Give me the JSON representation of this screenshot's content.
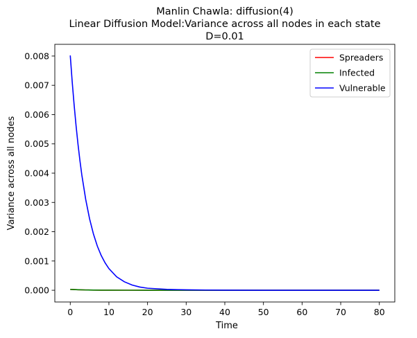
{
  "chart_data": {
    "type": "line",
    "title_lines": [
      "Manlin Chawla: diffusion(4)",
      "Linear Diffusion Model:Variance across all nodes in each state",
      "D=0.01"
    ],
    "xlabel": "Time",
    "ylabel": "Variance across all nodes",
    "xlim": [
      -4,
      84
    ],
    "ylim": [
      -0.0004,
      0.0084
    ],
    "xticks": [
      0,
      10,
      20,
      30,
      40,
      50,
      60,
      70,
      80
    ],
    "yticks": [
      0.0,
      0.001,
      0.002,
      0.003,
      0.004,
      0.005,
      0.006,
      0.007,
      0.008
    ],
    "ytick_labels": [
      "0.000",
      "0.001",
      "0.002",
      "0.003",
      "0.004",
      "0.005",
      "0.006",
      "0.007",
      "0.008"
    ],
    "grid": false,
    "legend_position": "top-right",
    "series": [
      {
        "name": "Spreaders",
        "color": "#ff0000",
        "x": [
          0,
          2,
          4,
          6,
          8,
          10,
          15,
          20,
          30,
          40,
          60,
          80
        ],
        "y": [
          3e-05,
          1.8e-05,
          1.1e-05,
          7e-06,
          4e-06,
          3e-06,
          2e-06,
          1e-06,
          5e-07,
          3e-07,
          1e-07,
          0.0
        ]
      },
      {
        "name": "Infected",
        "color": "#008000",
        "x": [
          0,
          2,
          4,
          6,
          8,
          10,
          15,
          20,
          30,
          40,
          60,
          80
        ],
        "y": [
          3e-05,
          1.8e-05,
          1.1e-05,
          7e-06,
          4e-06,
          3e-06,
          2e-06,
          1e-06,
          5e-07,
          3e-07,
          1e-07,
          0.0
        ]
      },
      {
        "name": "Vulnerable",
        "color": "#0000ff",
        "x": [
          0,
          0.5,
          1,
          1.5,
          2,
          2.5,
          3,
          4,
          5,
          6,
          7,
          8,
          9,
          10,
          12,
          14,
          16,
          18,
          20,
          25,
          30,
          35,
          40,
          50,
          60,
          70,
          80
        ],
        "y": [
          0.00802,
          0.00712,
          0.00633,
          0.00562,
          0.00499,
          0.00443,
          0.00393,
          0.0031,
          0.00244,
          0.00192,
          0.00151,
          0.00119,
          0.00094,
          0.00074,
          0.00046,
          0.00029,
          0.00018,
          0.00011,
          7e-05,
          3e-05,
          1.5e-05,
          8e-06,
          4e-06,
          1e-06,
          5e-07,
          2e-07,
          0.0
        ]
      }
    ]
  }
}
